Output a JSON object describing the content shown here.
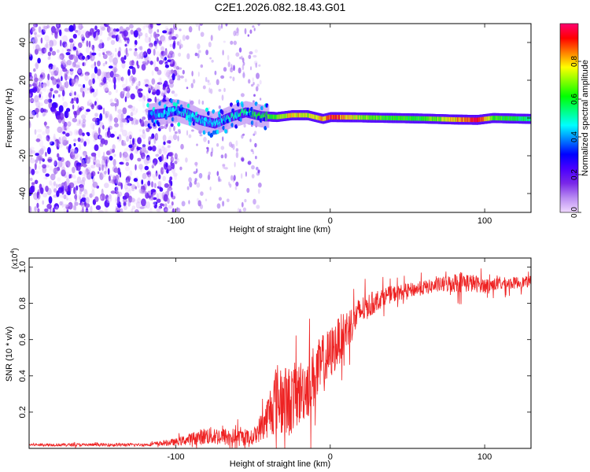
{
  "page_title": "C2E1.2026.082.18.43.G01",
  "chart_data": [
    {
      "type": "heatmap",
      "name": "spectrogram",
      "title": "C2E1.2026.082.18.43.G01",
      "xlabel": "Height of straight line (km)",
      "ylabel": "Frequency (Hz)",
      "xlim": [
        -195,
        130
      ],
      "ylim": [
        -50,
        50
      ],
      "x_ticks": [
        -100,
        0,
        100
      ],
      "x_tick_labels": [
        "-100",
        "0",
        "100"
      ],
      "y_ticks": [
        -40,
        -20,
        0,
        20,
        40
      ],
      "y_tick_labels": [
        "-40",
        "-20",
        "0",
        "20",
        "40"
      ],
      "colorbar": {
        "label": "Normalized spectral amplitude",
        "range": [
          0,
          1
        ],
        "ticks": [
          0,
          0.2,
          0.4,
          0.6,
          0.8
        ],
        "tick_labels": [
          "0.0",
          "0.2",
          "0.4",
          "0.6",
          "0.8"
        ],
        "colors": [
          "#f0d8ff",
          "#b98cf2",
          "#7a28e8",
          "#4a00ff",
          "#0000ff",
          "#0080ff",
          "#00ffff",
          "#00ff80",
          "#00ff00",
          "#80ff00",
          "#ffff00",
          "#ff8000",
          "#ff0000",
          "#ff0070"
        ]
      },
      "signal_track": [
        {
          "x": -118,
          "f": 1.5,
          "a": 0.35
        },
        {
          "x": -108,
          "f": 2.5,
          "a": 0.42
        },
        {
          "x": -100,
          "f": 4.0,
          "a": 0.45
        },
        {
          "x": -92,
          "f": 2.0,
          "a": 0.48
        },
        {
          "x": -85,
          "f": -1.0,
          "a": 0.45
        },
        {
          "x": -75,
          "f": -3.0,
          "a": 0.44
        },
        {
          "x": -65,
          "f": 0.5,
          "a": 0.5
        },
        {
          "x": -55,
          "f": 3.0,
          "a": 0.58
        },
        {
          "x": -45,
          "f": 1.0,
          "a": 0.6
        },
        {
          "x": -35,
          "f": 0.5,
          "a": 0.66
        },
        {
          "x": -25,
          "f": 1.5,
          "a": 0.8
        },
        {
          "x": -15,
          "f": 1.5,
          "a": 0.72
        },
        {
          "x": -5,
          "f": -0.5,
          "a": 0.78
        },
        {
          "x": 0,
          "f": 0.5,
          "a": 0.92
        },
        {
          "x": 20,
          "f": 0.3,
          "a": 0.7
        },
        {
          "x": 40,
          "f": 0.0,
          "a": 0.62
        },
        {
          "x": 60,
          "f": -0.3,
          "a": 0.62
        },
        {
          "x": 80,
          "f": -0.8,
          "a": 0.78
        },
        {
          "x": 95,
          "f": -1.0,
          "a": 0.95
        },
        {
          "x": 105,
          "f": 0.0,
          "a": 0.64
        },
        {
          "x": 120,
          "f": -0.3,
          "a": 0.58
        },
        {
          "x": 130,
          "f": -0.5,
          "a": 0.55
        }
      ],
      "noise_region_x": [
        -195,
        -100
      ]
    },
    {
      "type": "line",
      "name": "snr",
      "xlabel": "Height of straight line (km)",
      "ylabel": "SNR (10 * v/v)",
      "y_multiplier": "(x10",
      "y_multiplier_exp": "4",
      "y_multiplier_close": ")",
      "xlim": [
        -195,
        130
      ],
      "ylim": [
        0,
        1.05
      ],
      "x_ticks": [
        -100,
        0,
        100
      ],
      "x_tick_labels": [
        "-100",
        "0",
        "100"
      ],
      "y_ticks": [
        0.2,
        0.4,
        0.6,
        0.8,
        1.0
      ],
      "y_tick_labels": [
        "0.2",
        "0.4",
        "0.6",
        "0.8",
        "1.0"
      ],
      "color": "#ee2222",
      "envelope": [
        {
          "x": -195,
          "y": 0.02,
          "n": 0.008
        },
        {
          "x": -120,
          "y": 0.02,
          "n": 0.008
        },
        {
          "x": -100,
          "y": 0.035,
          "n": 0.02
        },
        {
          "x": -80,
          "y": 0.07,
          "n": 0.05
        },
        {
          "x": -60,
          "y": 0.06,
          "n": 0.05
        },
        {
          "x": -50,
          "y": 0.06,
          "n": 0.04
        },
        {
          "x": -42,
          "y": 0.15,
          "n": 0.1
        },
        {
          "x": -35,
          "y": 0.28,
          "n": 0.2
        },
        {
          "x": -28,
          "y": 0.25,
          "n": 0.2
        },
        {
          "x": -18,
          "y": 0.32,
          "n": 0.18
        },
        {
          "x": -10,
          "y": 0.4,
          "n": 0.18
        },
        {
          "x": 0,
          "y": 0.52,
          "n": 0.15
        },
        {
          "x": 10,
          "y": 0.65,
          "n": 0.12
        },
        {
          "x": 20,
          "y": 0.76,
          "n": 0.08
        },
        {
          "x": 35,
          "y": 0.84,
          "n": 0.05
        },
        {
          "x": 50,
          "y": 0.87,
          "n": 0.04
        },
        {
          "x": 70,
          "y": 0.9,
          "n": 0.04
        },
        {
          "x": 85,
          "y": 0.92,
          "n": 0.06
        },
        {
          "x": 100,
          "y": 0.9,
          "n": 0.04
        },
        {
          "x": 130,
          "y": 0.92,
          "n": 0.03
        }
      ],
      "samples": 1600
    }
  ]
}
